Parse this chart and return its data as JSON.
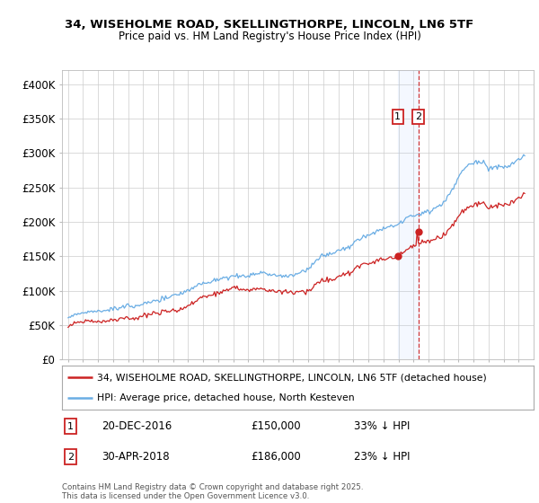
{
  "title_line1": "34, WISEHOLME ROAD, SKELLINGTHORPE, LINCOLN, LN6 5TF",
  "title_line2": "Price paid vs. HM Land Registry's House Price Index (HPI)",
  "ylim": [
    0,
    420000
  ],
  "yticks": [
    0,
    50000,
    100000,
    150000,
    200000,
    250000,
    300000,
    350000,
    400000
  ],
  "ytick_labels": [
    "£0",
    "£50K",
    "£100K",
    "£150K",
    "£200K",
    "£250K",
    "£300K",
    "£350K",
    "£400K"
  ],
  "hpi_color": "#6aade4",
  "price_color": "#cc2222",
  "marker1_x": 2016.958,
  "marker1_price": 150000,
  "marker2_x": 2018.333,
  "marker2_price": 186000,
  "marker1_label": "20-DEC-2016",
  "marker1_value": "£150,000",
  "marker1_hpi": "33% ↓ HPI",
  "marker2_label": "30-APR-2018",
  "marker2_value": "£186,000",
  "marker2_hpi": "23% ↓ HPI",
  "legend_line1": "34, WISEHOLME ROAD, SKELLINGTHORPE, LINCOLN, LN6 5TF (detached house)",
  "legend_line2": "HPI: Average price, detached house, North Kesteven",
  "footnote": "Contains HM Land Registry data © Crown copyright and database right 2025.\nThis data is licensed under the Open Government Licence v3.0.",
  "background_color": "#ffffff",
  "grid_color": "#cccccc",
  "xlim_left": 1994.6,
  "xlim_right": 2026.0
}
